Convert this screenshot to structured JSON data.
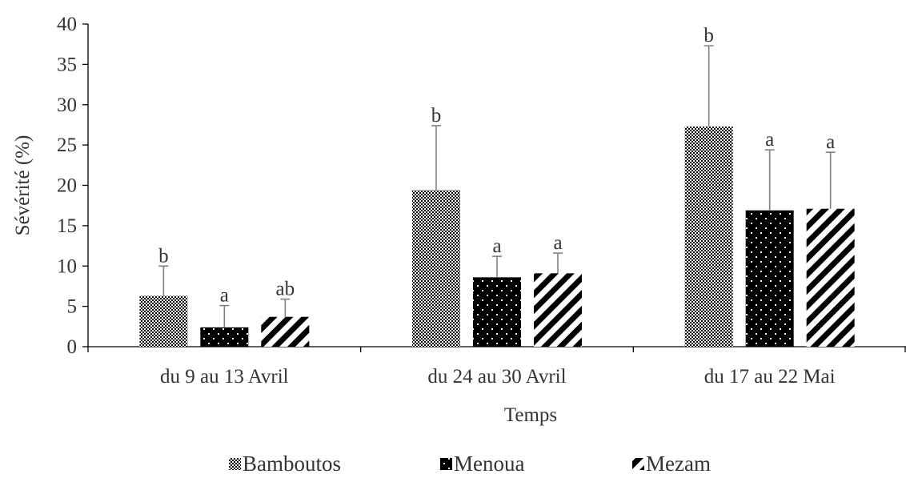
{
  "chart_data": {
    "type": "bar",
    "title": "",
    "xlabel": "Temps",
    "ylabel": "Sévérité (%)",
    "ylim": [
      0,
      40
    ],
    "yticks": [
      "0",
      "5",
      "10",
      "15",
      "20",
      "25",
      "30",
      "35",
      "40"
    ],
    "categories": [
      "du 9 au 13 Avril",
      "du 24 au 30 Avril",
      "du 17 au 22 Mai"
    ],
    "series": [
      {
        "name": "Bamboutos",
        "pattern": "checker",
        "color": "#000000",
        "values": [
          6.3,
          19.4,
          27.3
        ],
        "errors": [
          3.7,
          8.0,
          10.0
        ],
        "labels": [
          "b",
          "b",
          "b"
        ]
      },
      {
        "name": "Menoua",
        "pattern": "dots",
        "color": "#000000",
        "values": [
          2.4,
          8.6,
          16.9
        ],
        "errors": [
          2.7,
          2.6,
          7.5
        ],
        "labels": [
          "a",
          "a",
          "a"
        ]
      },
      {
        "name": "Mezam",
        "pattern": "stripes",
        "color": "#000000",
        "values": [
          3.7,
          9.1,
          17.1
        ],
        "errors": [
          2.2,
          2.5,
          7.0
        ],
        "labels": [
          "ab",
          "a",
          "a"
        ]
      }
    ],
    "error_bar_color": "#808080",
    "legend_position": "bottom",
    "grid": false
  }
}
